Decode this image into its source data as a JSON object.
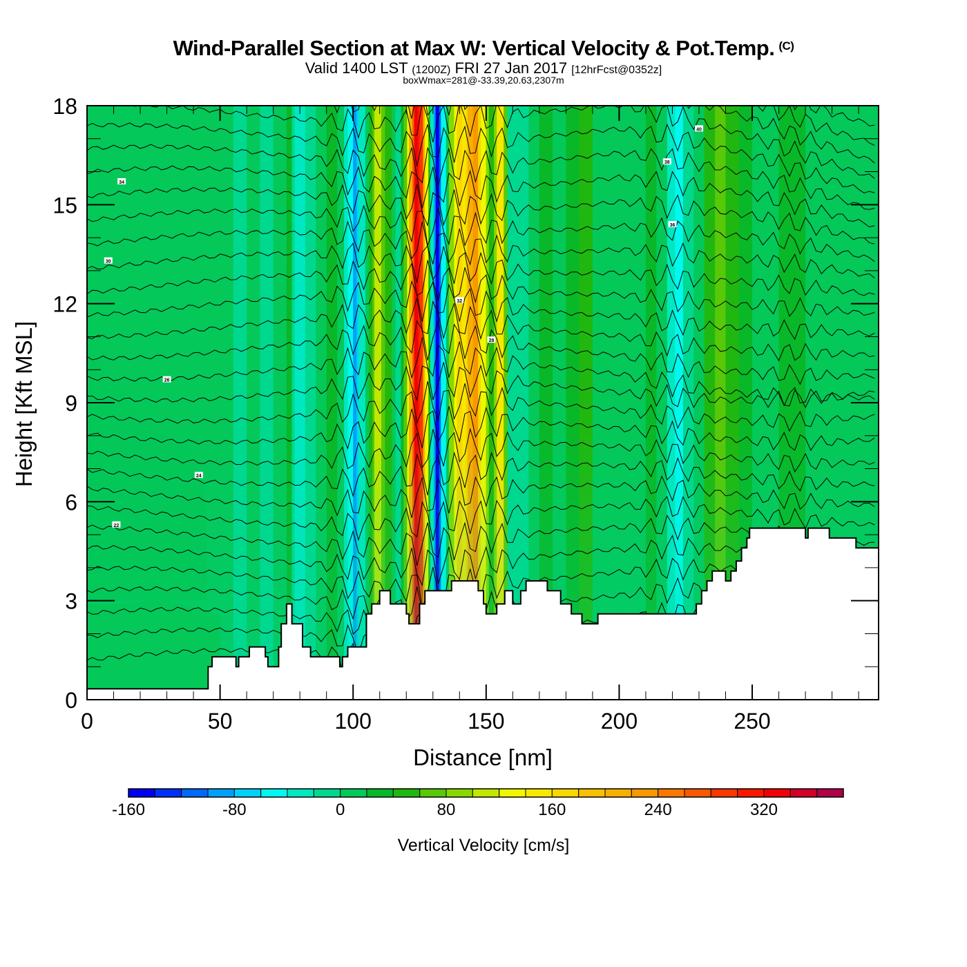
{
  "header": {
    "title": "Wind-Parallel Section at Max W: Vertical Velocity & Pot.Temp.",
    "copyright_mark": "(C)",
    "valid_prefix": "Valid 1400 LST",
    "valid_utc": "(1200Z)",
    "valid_date": "FRI 27 Jan 2017",
    "forecast_info": "[12hrFcst@0352z]",
    "box_info": "boxWmax=281@-33.39,20.63,2307m"
  },
  "chart_data": {
    "type": "heatmap",
    "title": "Wind-Parallel Section at Max W: Vertical Velocity & Pot.Temp.",
    "xlabel": "Distance [nm]",
    "ylabel": "Height [Kft MSL]",
    "xlim": [
      0,
      297.5
    ],
    "ylim": [
      0,
      18
    ],
    "x_ticks": [
      0,
      50,
      100,
      150,
      200,
      250
    ],
    "x_tick_labels": [
      "0",
      "50",
      "100",
      "150",
      "200",
      "250"
    ],
    "y_ticks": [
      0,
      3,
      6,
      9,
      12,
      15,
      18
    ],
    "y_tick_labels": [
      "0",
      "3",
      "6",
      "9",
      "12",
      "15",
      "18"
    ],
    "x_minor_step": 10,
    "y_minor_step": 1,
    "colorbar": {
      "title": "Vertical Velocity [cm/s]",
      "levels": [
        -160,
        -140,
        -120,
        -100,
        -80,
        -60,
        -40,
        -20,
        0,
        20,
        40,
        60,
        80,
        100,
        120,
        140,
        160,
        180,
        200,
        220,
        240,
        260,
        280,
        300,
        320,
        340,
        360,
        380
      ],
      "tick_values": [
        -160,
        -80,
        0,
        80,
        160,
        240,
        320
      ],
      "tick_labels": [
        "-160",
        "-80",
        "0",
        "80",
        "160",
        "240",
        "320"
      ],
      "colors": [
        "#0000f0",
        "#0030f8",
        "#0068f8",
        "#00a0f8",
        "#00d0f8",
        "#00f8f0",
        "#00e8c0",
        "#00d890",
        "#04c858",
        "#08b828",
        "#20b810",
        "#58c808",
        "#88d800",
        "#c0e800",
        "#f0f800",
        "#f8e800",
        "#f8d800",
        "#f8c000",
        "#f8b000",
        "#f89800",
        "#f87800",
        "#f85800",
        "#f83800",
        "#f81800",
        "#f00008",
        "#d00028",
        "#b00048"
      ]
    },
    "w_field_columns": {
      "description_units": "distance nm -> vertical velocity cm/s (dominant column value)",
      "x": [
        0,
        10,
        20,
        30,
        40,
        50,
        55,
        60,
        65,
        70,
        75,
        78,
        82,
        86,
        90,
        94,
        98,
        100,
        102,
        106,
        108,
        112,
        116,
        119,
        121,
        123,
        125,
        127,
        129,
        131,
        133,
        136,
        139,
        141,
        143,
        145,
        148,
        151,
        154,
        158,
        162,
        166,
        170,
        175,
        180,
        185,
        190,
        195,
        200,
        205,
        210,
        214,
        218,
        221,
        224,
        228,
        232,
        236,
        240,
        245,
        250,
        255,
        260,
        265,
        270,
        275,
        280,
        285,
        290,
        297.5
      ],
      "w": [
        5,
        5,
        15,
        5,
        10,
        15,
        -10,
        10,
        -20,
        5,
        20,
        -40,
        -10,
        10,
        30,
        0,
        -60,
        -90,
        -40,
        40,
        110,
        40,
        -10,
        60,
        200,
        330,
        280,
        120,
        -40,
        -150,
        -60,
        80,
        160,
        140,
        200,
        230,
        120,
        40,
        140,
        -10,
        -20,
        10,
        30,
        10,
        20,
        40,
        10,
        5,
        10,
        5,
        30,
        0,
        -30,
        -60,
        -20,
        10,
        40,
        70,
        40,
        20,
        10,
        5,
        30,
        20,
        10,
        5,
        15,
        10,
        5,
        5
      ]
    },
    "theta_contour_labels": [
      "34",
      "30",
      "26",
      "24",
      "22",
      "40",
      "38",
      "36",
      "32",
      "28"
    ],
    "terrain_kft": {
      "x": [
        0,
        45.5,
        47,
        49,
        56,
        57,
        61,
        62,
        67,
        68,
        71,
        72,
        73,
        75,
        77,
        81,
        82,
        84,
        88,
        93,
        95,
        96,
        98,
        102,
        105,
        107,
        110,
        113,
        114,
        119,
        120,
        121,
        125,
        127,
        137,
        139,
        147,
        149,
        150,
        151,
        154,
        157,
        160,
        163,
        165,
        173,
        178,
        182,
        186,
        192,
        196,
        206,
        214,
        216,
        217,
        222,
        225,
        229,
        231,
        233,
        235,
        238,
        240,
        242,
        244,
        246,
        248,
        249,
        252,
        270,
        271,
        273,
        279,
        283,
        289,
        297.5
      ],
      "h": [
        0.33,
        1.0,
        1.3,
        1.3,
        1.0,
        1.3,
        1.6,
        1.6,
        1.3,
        1.0,
        1.0,
        1.6,
        2.3,
        2.9,
        2.3,
        1.6,
        1.6,
        1.3,
        1.3,
        1.3,
        1.0,
        1.3,
        1.6,
        1.6,
        2.6,
        2.9,
        3.3,
        3.3,
        2.9,
        2.9,
        2.6,
        2.3,
        2.9,
        3.3,
        3.6,
        3.6,
        3.3,
        2.9,
        2.6,
        2.6,
        2.9,
        3.3,
        2.9,
        3.3,
        3.6,
        3.3,
        2.9,
        2.6,
        2.3,
        2.6,
        2.6,
        2.6,
        2.6,
        2.6,
        2.6,
        2.6,
        2.6,
        2.9,
        3.3,
        3.6,
        3.9,
        3.9,
        3.6,
        3.9,
        4.2,
        4.6,
        4.9,
        5.2,
        5.2,
        4.9,
        5.2,
        5.2,
        4.9,
        4.9,
        4.6,
        4.6
      ]
    }
  }
}
